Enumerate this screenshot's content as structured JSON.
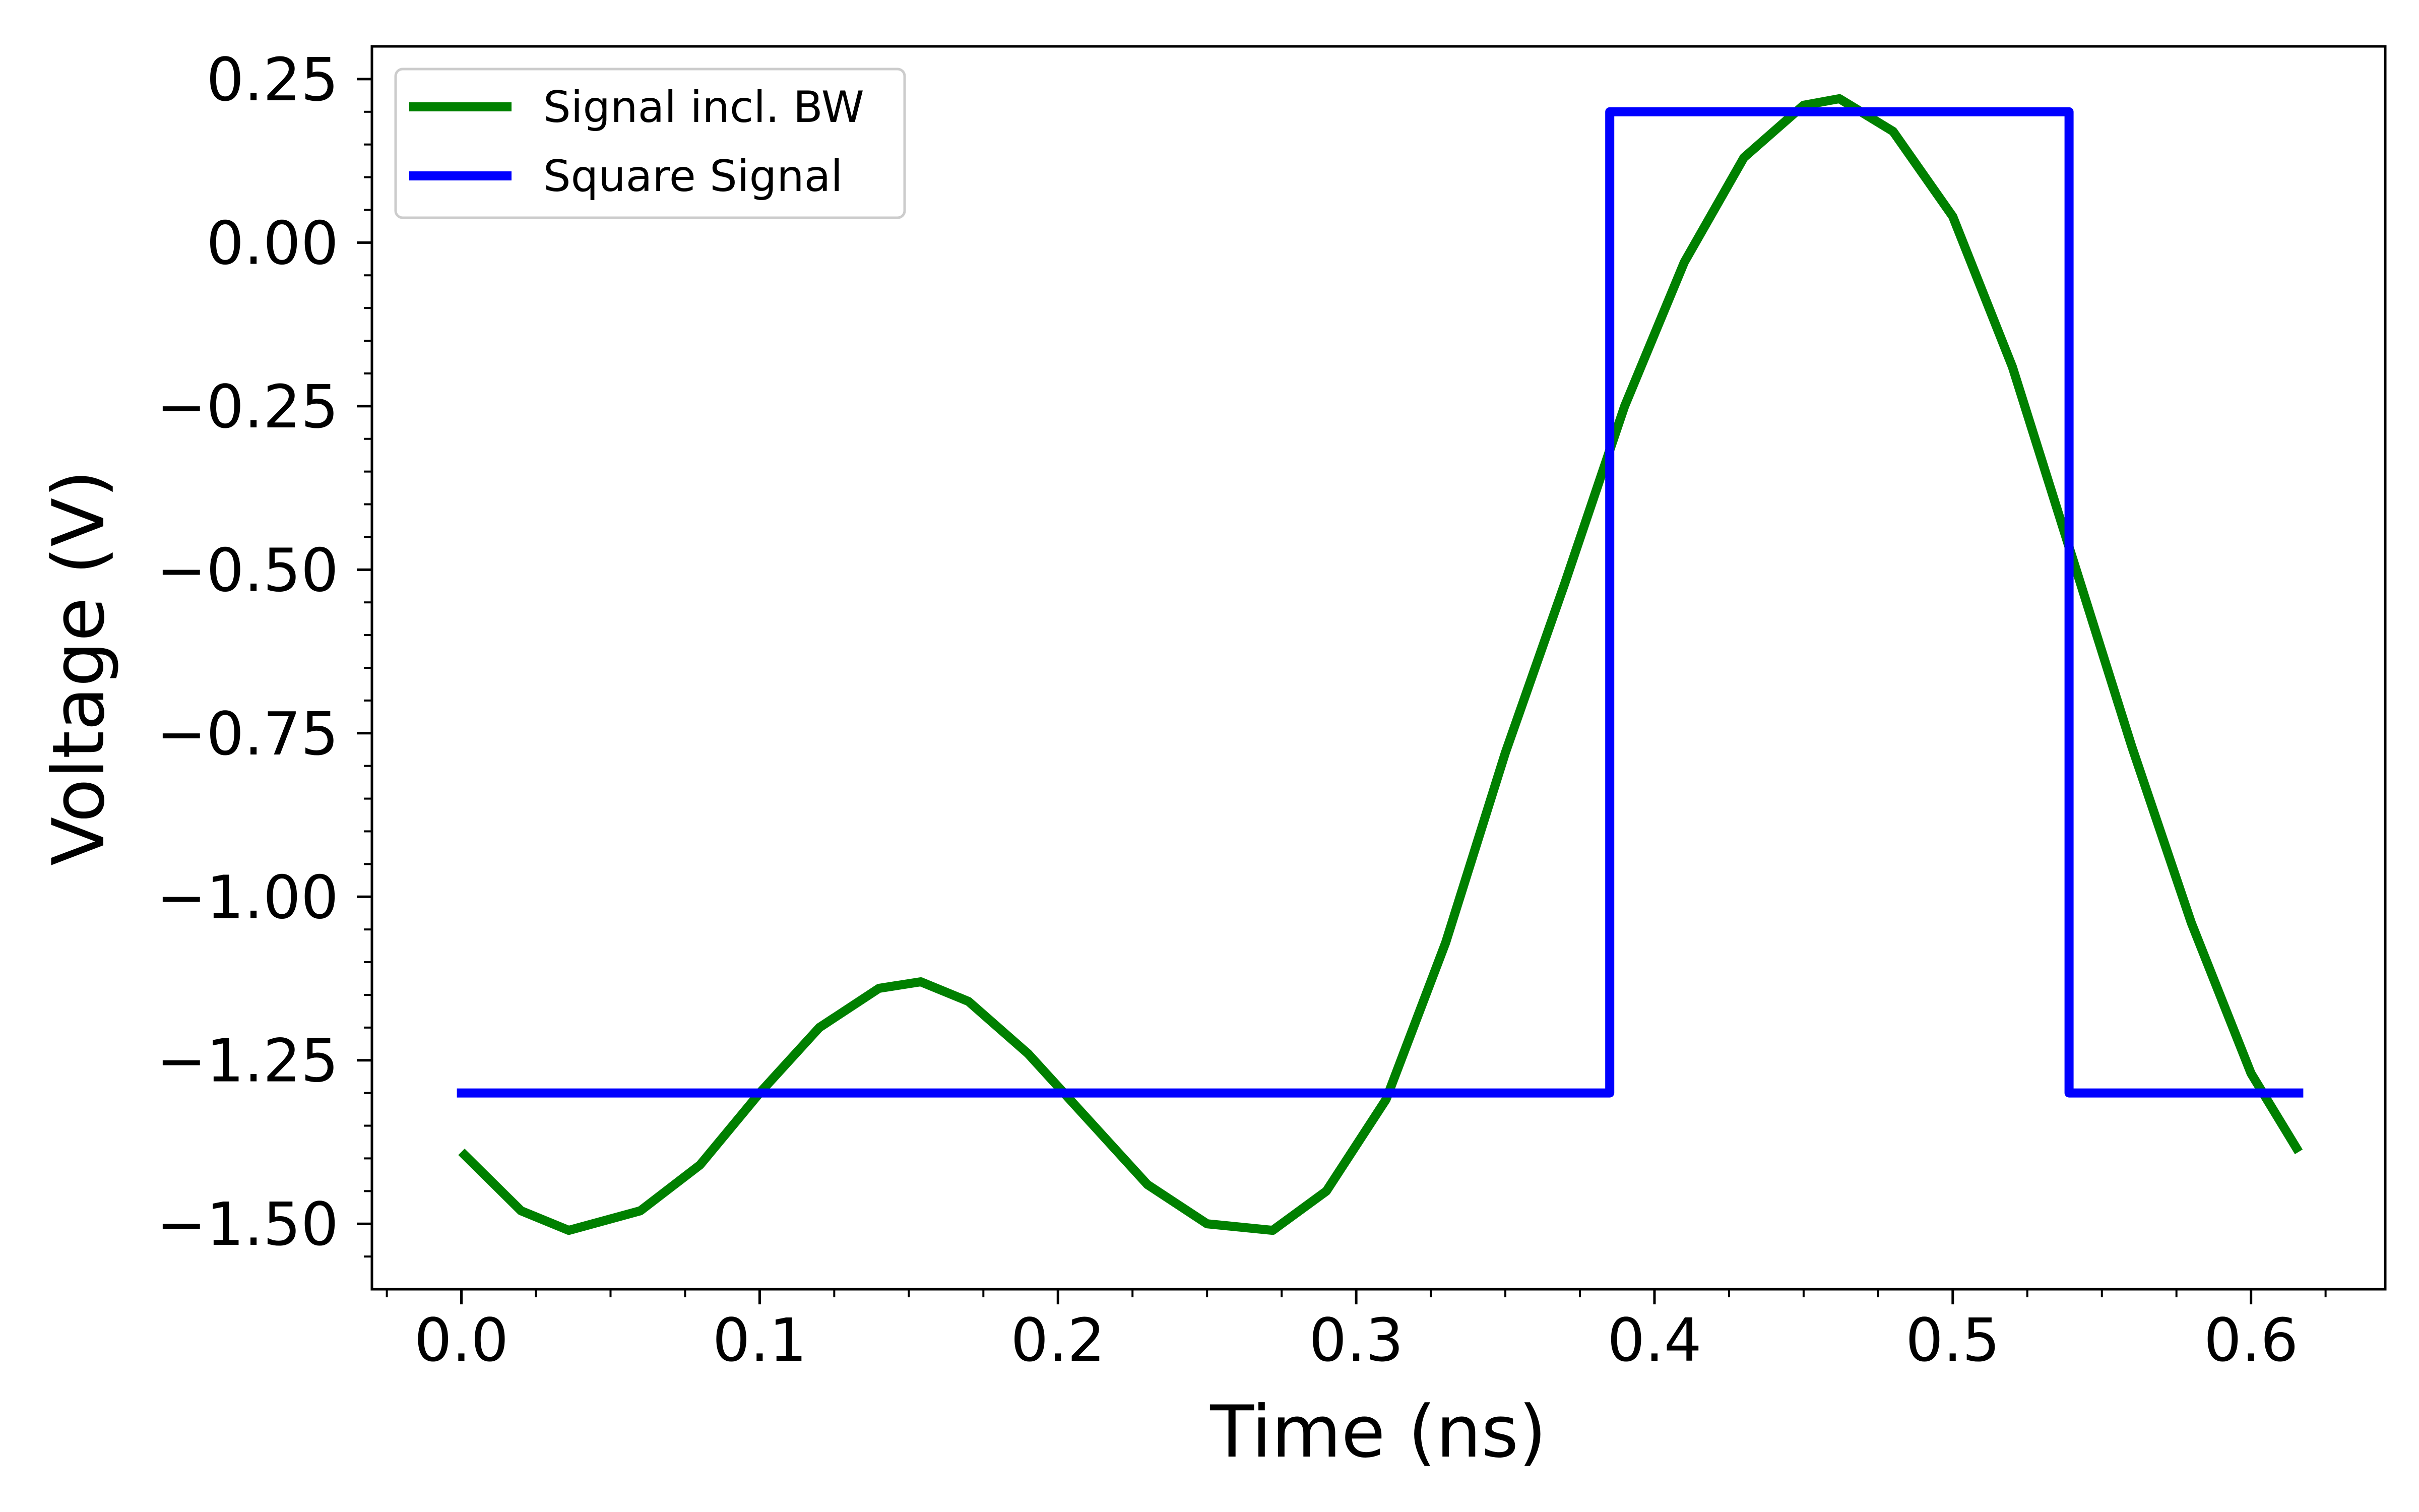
{
  "chart_data": {
    "type": "line",
    "xlabel": "Time (ns)",
    "ylabel": "Voltage (V)",
    "xlim": [
      -0.03,
      0.645
    ],
    "ylim": [
      -1.6,
      0.3
    ],
    "xticks": [
      0.0,
      0.1,
      0.2,
      0.3,
      0.4,
      0.5,
      0.6
    ],
    "xtick_labels": [
      "0.0",
      "0.1",
      "0.2",
      "0.3",
      "0.4",
      "0.5",
      "0.6"
    ],
    "yticks": [
      0.25,
      0.0,
      -0.25,
      -0.5,
      -0.75,
      -1.0,
      -1.25,
      -1.5
    ],
    "ytick_labels": [
      "0.25",
      "0.00",
      "−0.25",
      "−0.50",
      "−0.75",
      "−1.00",
      "−1.25",
      "−1.50"
    ],
    "grid": false,
    "legend_position": "top-left",
    "series": [
      {
        "name": "Signal incl. BW",
        "color": "#008000",
        "kind": "line",
        "x": [
          0.0,
          0.02,
          0.036,
          0.06,
          0.08,
          0.1,
          0.12,
          0.14,
          0.154,
          0.17,
          0.19,
          0.21,
          0.23,
          0.25,
          0.272,
          0.29,
          0.31,
          0.33,
          0.35,
          0.37,
          0.39,
          0.41,
          0.43,
          0.45,
          0.462,
          0.48,
          0.5,
          0.52,
          0.54,
          0.56,
          0.58,
          0.6,
          0.616
        ],
        "y": [
          -1.39,
          -1.48,
          -1.51,
          -1.48,
          -1.41,
          -1.3,
          -1.2,
          -1.14,
          -1.13,
          -1.16,
          -1.24,
          -1.34,
          -1.44,
          -1.5,
          -1.51,
          -1.45,
          -1.31,
          -1.07,
          -0.78,
          -0.52,
          -0.25,
          -0.03,
          0.13,
          0.21,
          0.22,
          0.17,
          0.04,
          -0.19,
          -0.48,
          -0.77,
          -1.04,
          -1.27,
          -1.39
        ]
      },
      {
        "name": "Square Signal",
        "color": "#0000ff",
        "kind": "step",
        "x": [
          0.0,
          0.385,
          0.385,
          0.539,
          0.539,
          0.616
        ],
        "y": [
          -1.3,
          -1.3,
          0.2,
          0.2,
          -1.3,
          -1.3
        ]
      }
    ]
  }
}
